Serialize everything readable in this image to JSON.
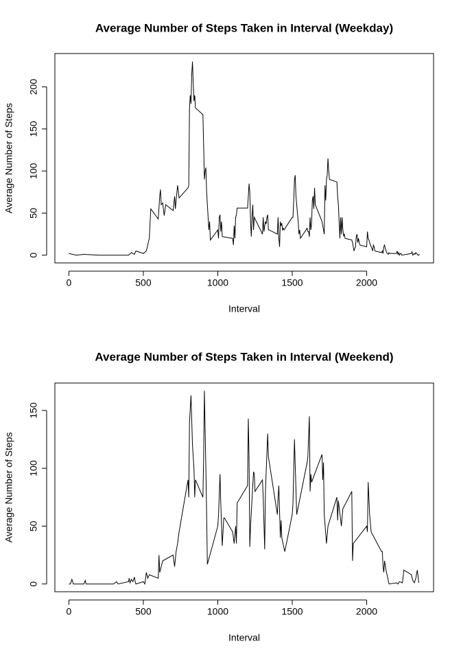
{
  "chart_data": [
    {
      "type": "line",
      "title": "Average Number of Steps Taken in Interval (Weekday)",
      "x_label": "Interval",
      "y_label": "Average Number of Steps",
      "color": "#000000",
      "xlim": [
        -94.2,
        2449.2
      ],
      "ylim": [
        -9.2,
        239.6
      ],
      "xticks": [
        0,
        500,
        1000,
        1500,
        2000
      ],
      "yticks": [
        0,
        50,
        100,
        150,
        200
      ],
      "x": [
        0,
        50,
        100,
        200,
        300,
        400,
        420,
        440,
        450,
        500,
        520,
        540,
        550,
        600,
        610,
        615,
        620,
        630,
        640,
        650,
        700,
        710,
        715,
        720,
        730,
        740,
        800,
        805,
        810,
        815,
        820,
        825,
        830,
        835,
        840,
        845,
        850,
        900,
        905,
        910,
        915,
        920,
        925,
        930,
        935,
        940,
        945,
        950,
        1000,
        1005,
        1010,
        1015,
        1020,
        1025,
        1030,
        1100,
        1105,
        1110,
        1115,
        1120,
        1125,
        1130,
        1200,
        1205,
        1210,
        1215,
        1220,
        1225,
        1230,
        1235,
        1240,
        1245,
        1300,
        1305,
        1310,
        1315,
        1320,
        1325,
        1330,
        1335,
        1340,
        1345,
        1400,
        1405,
        1410,
        1415,
        1420,
        1425,
        1430,
        1435,
        1440,
        1445,
        1500,
        1505,
        1510,
        1515,
        1520,
        1525,
        1530,
        1535,
        1540,
        1545,
        1550,
        1555,
        1600,
        1605,
        1610,
        1615,
        1620,
        1625,
        1630,
        1635,
        1640,
        1645,
        1650,
        1655,
        1700,
        1705,
        1710,
        1715,
        1720,
        1725,
        1730,
        1735,
        1740,
        1745,
        1750,
        1800,
        1805,
        1810,
        1815,
        1820,
        1825,
        1830,
        1835,
        1840,
        1845,
        1850,
        1855,
        1900,
        1905,
        1910,
        1915,
        1920,
        1925,
        1930,
        1935,
        1940,
        1945,
        1950,
        1955,
        2000,
        2005,
        2010,
        2015,
        2020,
        2025,
        2030,
        2035,
        2040,
        2045,
        2050,
        2055,
        2100,
        2105,
        2110,
        2115,
        2120,
        2125,
        2130,
        2135,
        2140,
        2145,
        2150,
        2155,
        2200,
        2205,
        2210,
        2215,
        2220,
        2225,
        2230,
        2235,
        2300,
        2305,
        2310,
        2315,
        2320,
        2325,
        2330,
        2335,
        2340,
        2345,
        2350,
        2355
      ],
      "values": [
        2,
        0,
        1,
        0,
        0,
        0,
        3,
        1,
        5,
        2,
        5,
        20,
        55,
        43,
        70,
        78,
        60,
        62,
        47,
        60,
        53,
        70,
        55,
        65,
        83,
        68,
        80,
        83,
        175,
        190,
        180,
        215,
        230,
        205,
        183,
        190,
        175,
        167,
        130,
        90,
        100,
        104,
        75,
        60,
        45,
        30,
        40,
        18,
        30,
        20,
        45,
        48,
        28,
        40,
        22,
        20,
        12,
        35,
        20,
        45,
        48,
        56,
        56,
        70,
        85,
        75,
        40,
        22,
        45,
        60,
        30,
        45,
        25,
        45,
        28,
        35,
        40,
        37,
        45,
        48,
        30,
        30,
        25,
        45,
        20,
        10,
        40,
        35,
        38,
        30,
        32,
        30,
        45,
        45,
        65,
        90,
        95,
        70,
        60,
        50,
        40,
        25,
        30,
        20,
        32,
        28,
        28,
        22,
        45,
        30,
        38,
        65,
        70,
        55,
        80,
        60,
        40,
        35,
        30,
        25,
        83,
        65,
        90,
        95,
        115,
        100,
        90,
        87,
        70,
        60,
        40,
        20,
        45,
        25,
        45,
        30,
        23,
        25,
        20,
        18,
        15,
        10,
        5,
        8,
        10,
        22,
        25,
        15,
        20,
        15,
        12,
        10,
        28,
        20,
        18,
        15,
        12,
        10,
        8,
        5,
        12,
        10,
        5,
        3,
        5,
        2,
        10,
        12,
        8,
        5,
        3,
        2,
        1,
        3,
        2,
        2,
        5,
        1,
        3,
        0,
        2,
        2,
        0,
        2,
        4,
        0,
        1,
        2,
        1,
        3,
        2,
        1,
        0,
        0,
        1
      ]
    },
    {
      "type": "line",
      "title": "Average Number of Steps Taken in Interval (Weekend)",
      "x_label": "Interval",
      "y_label": "Average Number of Steps",
      "color": "#000000",
      "xlim": [
        -94.2,
        2449.2
      ],
      "ylim": [
        -6.7,
        173.7
      ],
      "xticks": [
        0,
        500,
        1000,
        1500,
        2000
      ],
      "yticks": [
        0,
        50,
        100,
        150
      ],
      "x": [
        0,
        10,
        20,
        30,
        100,
        110,
        115,
        200,
        300,
        320,
        330,
        400,
        405,
        410,
        420,
        430,
        440,
        445,
        450,
        500,
        510,
        520,
        530,
        540,
        600,
        605,
        610,
        620,
        630,
        700,
        710,
        720,
        730,
        740,
        800,
        805,
        810,
        820,
        830,
        840,
        845,
        850,
        900,
        905,
        910,
        920,
        925,
        930,
        1000,
        1005,
        1015,
        1020,
        1030,
        1040,
        1045,
        1100,
        1110,
        1120,
        1125,
        1130,
        1200,
        1205,
        1210,
        1215,
        1220,
        1240,
        1245,
        1250,
        1300,
        1305,
        1315,
        1320,
        1335,
        1340,
        1400,
        1405,
        1410,
        1420,
        1425,
        1430,
        1450,
        1500,
        1505,
        1515,
        1530,
        1600,
        1605,
        1615,
        1620,
        1625,
        1630,
        1700,
        1705,
        1710,
        1715,
        1730,
        1740,
        1800,
        1805,
        1810,
        1830,
        1840,
        1900,
        1905,
        1910,
        2000,
        2005,
        2010,
        2020,
        2030,
        2100,
        2105,
        2110,
        2115,
        2120,
        2130,
        2150,
        2200,
        2210,
        2220,
        2240,
        2250,
        2300,
        2310,
        2320,
        2330,
        2340,
        2350
      ],
      "values": [
        0,
        0,
        4,
        0,
        0,
        3,
        0,
        0,
        0,
        2,
        0,
        2,
        5,
        1,
        4,
        2,
        6,
        2,
        0,
        2,
        0,
        10,
        5,
        8,
        5,
        25,
        10,
        15,
        20,
        25,
        15,
        28,
        35,
        45,
        90,
        75,
        140,
        163,
        120,
        100,
        75,
        90,
        75,
        110,
        167,
        100,
        60,
        17,
        50,
        60,
        95,
        70,
        33,
        57,
        57,
        45,
        35,
        50,
        35,
        70,
        85,
        143,
        110,
        32,
        50,
        97,
        95,
        80,
        90,
        75,
        30,
        80,
        130,
        110,
        60,
        75,
        85,
        40,
        55,
        40,
        28,
        60,
        70,
        125,
        60,
        105,
        110,
        145,
        80,
        95,
        88,
        112,
        90,
        105,
        60,
        35,
        50,
        75,
        55,
        72,
        50,
        65,
        80,
        20,
        35,
        50,
        45,
        88,
        60,
        45,
        28,
        28,
        15,
        10,
        20,
        12,
        0,
        1,
        0,
        2,
        1,
        12,
        8,
        3,
        1,
        5,
        12,
        1
      ]
    }
  ]
}
